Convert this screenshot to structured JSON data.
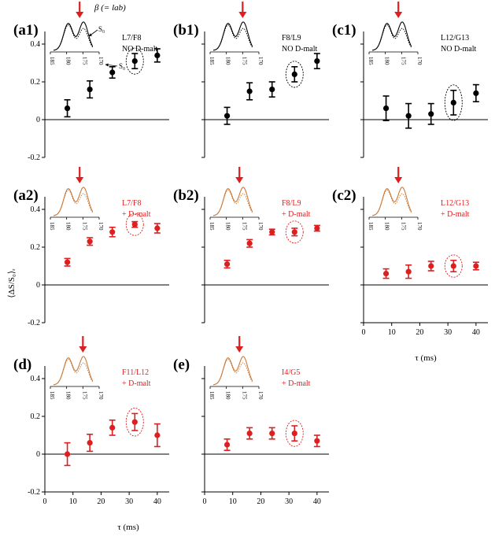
{
  "figure": {
    "y_axis_label": "⟨ΔS/S₀⟩ᵣ",
    "x_axis_label": "τ (ms)",
    "x_ticks": [
      "0",
      "10",
      "20",
      "30",
      "40"
    ],
    "y_ticks": [
      "-0.2",
      "0",
      "0.2",
      "0.4"
    ],
    "spectrum_ticks": [
      "185",
      "180",
      "175",
      "170"
    ],
    "annotations": {
      "beta_label": "β (= lab)",
      "s_label": "S₀",
      "s0_label": "S₀"
    },
    "colors": {
      "black": "#000000",
      "red": "#dd1f1f",
      "spectrum_orange": "#c87a3a"
    }
  },
  "chart_data": [
    {
      "id": "a1",
      "type": "scatter",
      "panel_label": "(a1)",
      "site": "L7/F8",
      "condition": "NO D-malt",
      "color": "#000000",
      "x": [
        8,
        16,
        24,
        32,
        40
      ],
      "y": [
        0.06,
        0.16,
        0.25,
        0.31,
        0.34
      ],
      "err": [
        0.045,
        0.045,
        0.03,
        0.04,
        0.035
      ],
      "circled_index": 3,
      "arrow_x": 176,
      "xlim": [
        0,
        42
      ],
      "ylim": [
        -0.2,
        0.55
      ]
    },
    {
      "id": "b1",
      "type": "scatter",
      "panel_label": "(b1)",
      "site": "F8/L9",
      "condition": "NO D-malt",
      "color": "#000000",
      "x": [
        8,
        16,
        24,
        32,
        40
      ],
      "y": [
        0.02,
        0.15,
        0.16,
        0.24,
        0.31
      ],
      "err": [
        0.045,
        0.045,
        0.04,
        0.04,
        0.04
      ],
      "circled_index": 3,
      "arrow_x": 175,
      "xlim": [
        0,
        42
      ],
      "ylim": [
        -0.2,
        0.55
      ]
    },
    {
      "id": "c1",
      "type": "scatter",
      "panel_label": "(c1)",
      "site": "L12/G13",
      "condition": "NO D-malt",
      "color": "#000000",
      "x": [
        8,
        16,
        24,
        32,
        40
      ],
      "y": [
        0.06,
        0.02,
        0.03,
        0.09,
        0.14
      ],
      "err": [
        0.065,
        0.065,
        0.055,
        0.065,
        0.045
      ],
      "circled_index": 3,
      "arrow_x": 176,
      "xlim": [
        0,
        42
      ],
      "ylim": [
        -0.2,
        0.55
      ]
    },
    {
      "id": "a2",
      "type": "scatter",
      "panel_label": "(a2)",
      "site": "L7/F8",
      "condition": "+ D-malt",
      "color": "#dd1f1f",
      "x": [
        8,
        16,
        24,
        32,
        40
      ],
      "y": [
        0.12,
        0.23,
        0.28,
        0.32,
        0.3
      ],
      "err": [
        0.02,
        0.02,
        0.025,
        0.015,
        0.025
      ],
      "circled_index": 3,
      "arrow_x": 176,
      "xlim": [
        0,
        42
      ],
      "ylim": [
        -0.2,
        0.55
      ]
    },
    {
      "id": "b2",
      "type": "scatter",
      "panel_label": "(b2)",
      "site": "F8/L9",
      "condition": "+ D-malt",
      "color": "#dd1f1f",
      "x": [
        8,
        16,
        24,
        32,
        40
      ],
      "y": [
        0.11,
        0.22,
        0.28,
        0.28,
        0.3
      ],
      "err": [
        0.02,
        0.02,
        0.015,
        0.02,
        0.015
      ],
      "circled_index": 3,
      "arrow_x": 176,
      "xlim": [
        0,
        42
      ],
      "ylim": [
        -0.2,
        0.55
      ]
    },
    {
      "id": "c2",
      "type": "scatter",
      "panel_label": "(c2)",
      "site": "L12/G13",
      "condition": "+ D-malt",
      "color": "#dd1f1f",
      "x": [
        8,
        16,
        24,
        32,
        40
      ],
      "y": [
        0.06,
        0.07,
        0.1,
        0.1,
        0.1
      ],
      "err": [
        0.025,
        0.035,
        0.025,
        0.03,
        0.02
      ],
      "circled_index": 3,
      "arrow_x": 176,
      "xlim": [
        0,
        42
      ],
      "ylim": [
        -0.2,
        0.55
      ]
    },
    {
      "id": "d",
      "type": "scatter",
      "panel_label": "(d)",
      "site": "F11/L12",
      "condition": "+ D-malt",
      "color": "#dd1f1f",
      "x": [
        8,
        16,
        24,
        32,
        40
      ],
      "y": [
        0.0,
        0.06,
        0.14,
        0.17,
        0.1
      ],
      "err": [
        0.06,
        0.045,
        0.04,
        0.045,
        0.06
      ],
      "circled_index": 3,
      "arrow_x": 175,
      "xlim": [
        0,
        42
      ],
      "ylim": [
        -0.2,
        0.55
      ]
    },
    {
      "id": "e",
      "type": "scatter",
      "panel_label": "(e)",
      "site": "I4/G5",
      "condition": "+ D-malt",
      "color": "#dd1f1f",
      "x": [
        8,
        16,
        24,
        32,
        40
      ],
      "y": [
        0.05,
        0.11,
        0.11,
        0.11,
        0.07
      ],
      "err": [
        0.03,
        0.03,
        0.03,
        0.04,
        0.03
      ],
      "circled_index": 3,
      "arrow_x": 176,
      "xlim": [
        0,
        42
      ],
      "ylim": [
        -0.2,
        0.55
      ]
    }
  ]
}
